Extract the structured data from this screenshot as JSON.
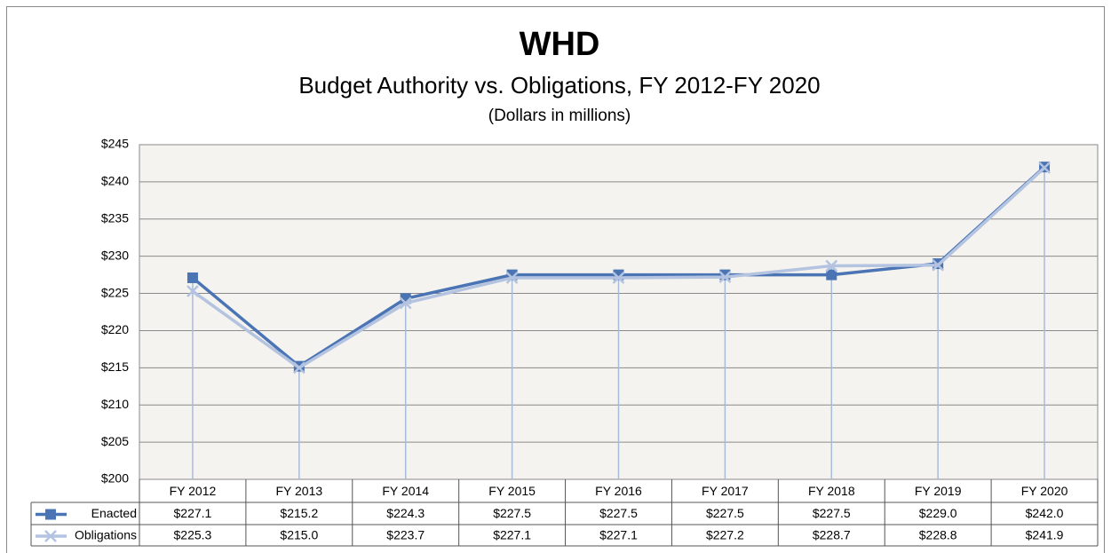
{
  "chart_data": {
    "type": "line",
    "title": "WHD",
    "subtitle": "Budget Authority vs. Obligations, FY 2012-FY 2020",
    "note": "(Dollars in  millions)",
    "categories": [
      "FY 2012",
      "FY 2013",
      "FY 2014",
      "FY 2015",
      "FY 2016",
      "FY 2017",
      "FY 2018",
      "FY 2019",
      "FY 2020"
    ],
    "series": [
      {
        "name": "Enacted",
        "color": "#4a74b4",
        "marker": "square",
        "values": [
          227.1,
          215.2,
          224.3,
          227.5,
          227.5,
          227.5,
          227.5,
          229.0,
          242.0
        ],
        "value_labels": [
          "$227.1",
          "$215.2",
          "$224.3",
          "$227.5",
          "$227.5",
          "$227.5",
          "$227.5",
          "$229.0",
          "$242.0"
        ]
      },
      {
        "name": "Obligations",
        "color": "#b3c3e0",
        "marker": "x",
        "values": [
          225.3,
          215.0,
          223.7,
          227.1,
          227.1,
          227.2,
          228.7,
          228.8,
          241.9
        ],
        "value_labels": [
          "$225.3",
          "$215.0",
          "$223.7",
          "$227.1",
          "$227.1",
          "$227.2",
          "$228.7",
          "$228.8",
          "$241.9"
        ]
      }
    ],
    "ylim": [
      200,
      245
    ],
    "yticks": [
      {
        "value": 200,
        "label": "$200"
      },
      {
        "value": 205,
        "label": "$205"
      },
      {
        "value": 210,
        "label": "$210"
      },
      {
        "value": 215,
        "label": "$215"
      },
      {
        "value": 220,
        "label": "$220"
      },
      {
        "value": 225,
        "label": "$225"
      },
      {
        "value": 230,
        "label": "$230"
      },
      {
        "value": 235,
        "label": "$235"
      },
      {
        "value": 240,
        "label": "$240"
      },
      {
        "value": 245,
        "label": "$245"
      }
    ],
    "grid": true,
    "drop_lines": true,
    "data_table": true
  }
}
